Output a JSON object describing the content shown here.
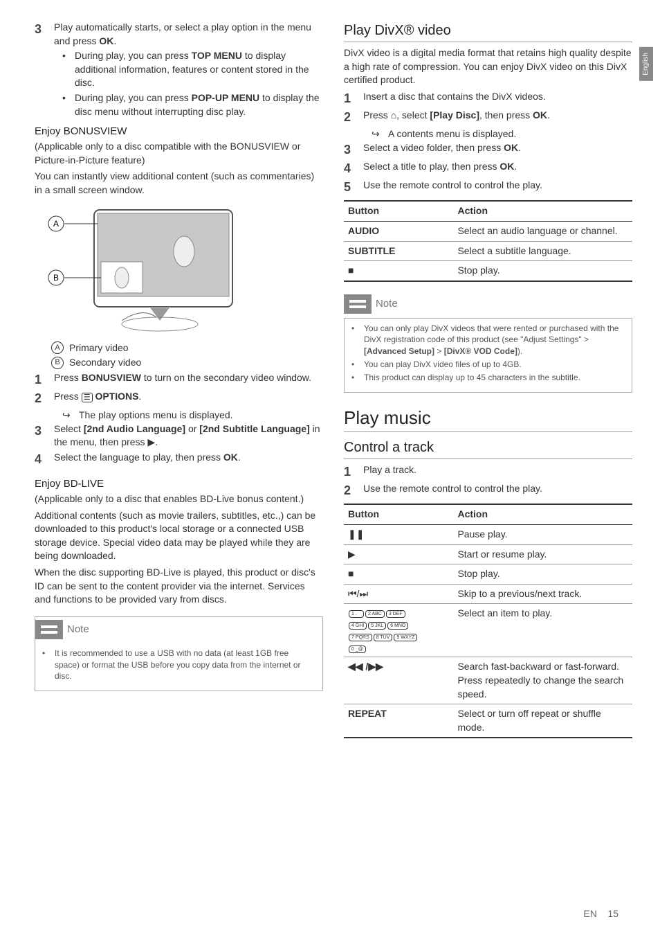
{
  "side_tab": "English",
  "footer": {
    "lang": "EN",
    "page": "15"
  },
  "left": {
    "step3": {
      "num": "3",
      "text_a": "Play automatically starts, or select a play option in the menu and press ",
      "ok": "OK",
      "text_b": "."
    },
    "step3_bullets": [
      {
        "a": "During play, you can press ",
        "b": "TOP MENU",
        "c": " to display additional information, features or content stored in the disc."
      },
      {
        "a": "During play, you can press ",
        "b": "POP-UP MENU",
        "c": " to display the disc menu without interrupting disc play."
      }
    ],
    "bonus_h": "Enjoy BONUSVIEW",
    "bonus_p1": "(Applicable only to a disc compatible with the BONUSVIEW or Picture-in-Picture feature)",
    "bonus_p2": "You can instantly view additional content (such as commentaries) in a small screen window.",
    "label_a": "Primary video",
    "label_b": "Secondary video",
    "bv_steps": [
      {
        "num": "1",
        "a": "Press ",
        "b": "BONUSVIEW",
        "c": " to turn on the secondary video window."
      },
      {
        "num": "2",
        "a": "Press ",
        "icon": "☰",
        "b": " OPTIONS",
        "c": "."
      },
      {
        "num": "3",
        "a": "Select ",
        "b": "[2nd Audio Language]",
        "mid": " or ",
        "b2": "[2nd Subtitle Language]",
        "c": " in the menu, then press ",
        "icon2": "▶",
        "d": "."
      },
      {
        "num": "4",
        "a": "Select the language to play, then press ",
        "b": "OK",
        "c": "."
      }
    ],
    "bv_arrow": "The play options menu is displayed.",
    "bdlive_h": "Enjoy BD-LIVE",
    "bdlive_p1": "(Applicable only to a disc that enables BD-Live bonus content.)",
    "bdlive_p2": "Additional contents (such as movie trailers, subtitles, etc.,) can be downloaded to this product's local storage or a connected USB storage device. Special video data may be played while they are being downloaded.",
    "bdlive_p3": "When the disc supporting BD-Live is played, this product or disc's ID can be sent to the content provider via the internet. Services and functions to be provided vary from discs.",
    "note1_title": "Note",
    "note1_body": "It is recommended to use a USB with no data (at least 1GB free space) or format the USB before you copy data from the internet or disc."
  },
  "right": {
    "divx_h": "Play DivX® video",
    "divx_p": "DivX video is a digital media format that retains high quality despite a high rate of compression. You can enjoy DivX video on this DivX certified product.",
    "divx_steps": [
      {
        "num": "1",
        "a": "Insert a disc that contains the DivX videos."
      },
      {
        "num": "2",
        "a": "Press ",
        "icon": "⌂",
        "b": ", select ",
        "c": "[Play Disc]",
        "d": ", then press ",
        "e": "OK",
        "f": "."
      },
      {
        "num": "3",
        "a": "Select a video folder, then press ",
        "b": "OK",
        "c": "."
      },
      {
        "num": "4",
        "a": "Select a title to play, then press ",
        "b": "OK",
        "c": "."
      },
      {
        "num": "5",
        "a": "Use the remote control to control the play."
      }
    ],
    "divx_arrow": "A contents menu is displayed.",
    "table1": {
      "head": [
        "Button",
        "Action"
      ],
      "rows": [
        {
          "btn": "AUDIO",
          "act": "Select an audio language or channel."
        },
        {
          "btn": "SUBTITLE",
          "act": "Select a subtitle language."
        },
        {
          "btn": "■",
          "act": "Stop play."
        }
      ]
    },
    "note2_title": "Note",
    "note2_items": [
      {
        "a": "You can only play DivX videos that were rented or purchased with the DivX registration code of this product (see \"Adjust Settings\" > ",
        "b": "[Advanced Setup]",
        "c": " > ",
        "d": "[DivX® VOD Code]",
        "e": ")."
      },
      {
        "a": "You can play DivX video files of up to 4GB."
      },
      {
        "a": "This product can display up to 45 characters in the subtitle."
      }
    ],
    "music_h": "Play music",
    "control_h": "Control a track",
    "music_steps": [
      {
        "num": "1",
        "a": "Play a track."
      },
      {
        "num": "2",
        "a": "Use the remote control to control the play."
      }
    ],
    "table2": {
      "head": [
        "Button",
        "Action"
      ],
      "rows": [
        {
          "btn": "❚❚",
          "act": "Pause play."
        },
        {
          "btn": "▶",
          "act": "Start or resume play."
        },
        {
          "btn": "■",
          "act": "Stop play."
        },
        {
          "btn": "⏮/⏭",
          "act": "Skip to a previous/next track."
        },
        {
          "btn": "__keypad__",
          "act": "Select an item to play."
        },
        {
          "btn": "◀◀ /▶▶",
          "act": "Search fast-backward or fast-forward. Press repeatedly to change the search speed."
        },
        {
          "btn": "REPEAT",
          "act": "Select or turn off repeat or shuffle mode."
        }
      ]
    },
    "keypad": [
      "1 .",
      "2 ABC",
      "3 DEF",
      "4 GHI",
      "5 JKL",
      "6 MNO",
      "7 PQRS",
      "8 TUV",
      "9 WXYZ",
      "0 _@"
    ]
  }
}
